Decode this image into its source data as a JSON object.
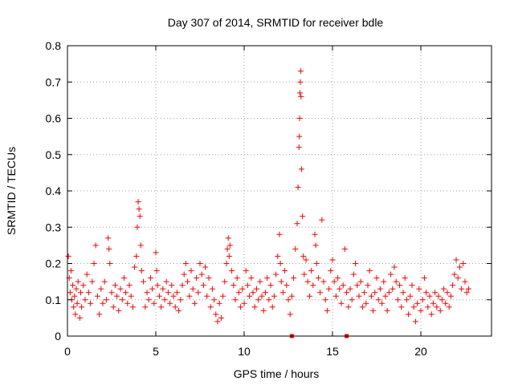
{
  "chart_data": {
    "type": "scatter",
    "title": "Day 307 of 2014, SRMTID for receiver bdle",
    "xlabel": "GPS time / hours",
    "ylabel": "SRMTID / TECUs",
    "xlim": [
      0,
      24
    ],
    "ylim": [
      0,
      0.8
    ],
    "xticks": [
      "0",
      "5",
      "10",
      "15",
      "20"
    ],
    "xtick_values": [
      0,
      5,
      10,
      15,
      20
    ],
    "yticks": [
      "0",
      "0.1",
      "0.2",
      "0.3",
      "0.4",
      "0.5",
      "0.6",
      "0.7",
      "0.8"
    ],
    "ytick_values": [
      0,
      0.1,
      0.2,
      0.3,
      0.4,
      0.5,
      0.6,
      0.7,
      0.8
    ],
    "grid": true,
    "marker": "plus",
    "color": "#ff0000",
    "series": [
      {
        "name": "SRMTID",
        "points": [
          [
            0.05,
            0.22
          ],
          [
            0.1,
            0.16
          ],
          [
            0.15,
            0.12
          ],
          [
            0.2,
            0.18
          ],
          [
            0.25,
            0.1
          ],
          [
            0.3,
            0.14
          ],
          [
            0.35,
            0.08
          ],
          [
            0.4,
            0.11
          ],
          [
            0.45,
            0.06
          ],
          [
            0.5,
            0.13
          ],
          [
            0.55,
            0.09
          ],
          [
            0.6,
            0.15
          ],
          [
            0.7,
            0.05
          ],
          [
            0.75,
            0.12
          ],
          [
            0.8,
            0.08
          ],
          [
            0.9,
            0.14
          ],
          [
            1.0,
            0.1
          ],
          [
            1.1,
            0.17
          ],
          [
            1.2,
            0.12
          ],
          [
            1.3,
            0.09
          ],
          [
            1.4,
            0.15
          ],
          [
            1.5,
            0.2
          ],
          [
            1.6,
            0.25
          ],
          [
            1.7,
            0.11
          ],
          [
            1.8,
            0.06
          ],
          [
            1.9,
            0.13
          ],
          [
            2.0,
            0.09
          ],
          [
            2.1,
            0.15
          ],
          [
            2.2,
            0.1
          ],
          [
            2.3,
            0.27
          ],
          [
            2.35,
            0.24
          ],
          [
            2.4,
            0.2
          ],
          [
            2.5,
            0.12
          ],
          [
            2.6,
            0.08
          ],
          [
            2.7,
            0.14
          ],
          [
            2.8,
            0.11
          ],
          [
            2.9,
            0.07
          ],
          [
            3.0,
            0.13
          ],
          [
            3.1,
            0.1
          ],
          [
            3.2,
            0.16
          ],
          [
            3.3,
            0.12
          ],
          [
            3.4,
            0.09
          ],
          [
            3.5,
            0.14
          ],
          [
            3.6,
            0.11
          ],
          [
            3.7,
            0.08
          ],
          [
            3.8,
            0.19
          ],
          [
            3.9,
            0.22
          ],
          [
            3.95,
            0.3
          ],
          [
            4.0,
            0.37
          ],
          [
            4.05,
            0.35
          ],
          [
            4.1,
            0.33
          ],
          [
            4.15,
            0.25
          ],
          [
            4.2,
            0.18
          ],
          [
            4.3,
            0.15
          ],
          [
            4.4,
            0.08
          ],
          [
            4.5,
            0.12
          ],
          [
            4.6,
            0.1
          ],
          [
            4.7,
            0.16
          ],
          [
            4.8,
            0.13
          ],
          [
            4.9,
            0.09
          ],
          [
            5.0,
            0.23
          ],
          [
            5.05,
            0.18
          ],
          [
            5.1,
            0.14
          ],
          [
            5.2,
            0.11
          ],
          [
            5.3,
            0.08
          ],
          [
            5.4,
            0.13
          ],
          [
            5.5,
            0.1
          ],
          [
            5.6,
            0.15
          ],
          [
            5.7,
            0.12
          ],
          [
            5.8,
            0.09
          ],
          [
            5.9,
            0.14
          ],
          [
            6.0,
            0.11
          ],
          [
            6.1,
            0.08
          ],
          [
            6.2,
            0.12
          ],
          [
            6.3,
            0.07
          ],
          [
            6.4,
            0.1
          ],
          [
            6.5,
            0.14
          ],
          [
            6.6,
            0.17
          ],
          [
            6.7,
            0.2
          ],
          [
            6.8,
            0.15
          ],
          [
            6.9,
            0.11
          ],
          [
            7.0,
            0.18
          ],
          [
            7.1,
            0.13
          ],
          [
            7.2,
            0.09
          ],
          [
            7.3,
            0.16
          ],
          [
            7.4,
            0.12
          ],
          [
            7.5,
            0.2
          ],
          [
            7.6,
            0.17
          ],
          [
            7.7,
            0.14
          ],
          [
            7.8,
            0.19
          ],
          [
            7.9,
            0.11
          ],
          [
            8.0,
            0.16
          ],
          [
            8.1,
            0.08
          ],
          [
            8.2,
            0.13
          ],
          [
            8.3,
            0.1
          ],
          [
            8.4,
            0.06
          ],
          [
            8.5,
            0.04
          ],
          [
            8.6,
            0.09
          ],
          [
            8.7,
            0.05
          ],
          [
            8.8,
            0.11
          ],
          [
            8.9,
            0.15
          ],
          [
            9.0,
            0.2
          ],
          [
            9.05,
            0.24
          ],
          [
            9.1,
            0.27
          ],
          [
            9.15,
            0.22
          ],
          [
            9.2,
            0.25
          ],
          [
            9.3,
            0.18
          ],
          [
            9.4,
            0.14
          ],
          [
            9.5,
            0.1
          ],
          [
            9.6,
            0.16
          ],
          [
            9.7,
            0.12
          ],
          [
            9.8,
            0.08
          ],
          [
            9.9,
            0.13
          ],
          [
            10.0,
            0.09
          ],
          [
            10.1,
            0.18
          ],
          [
            10.2,
            0.14
          ],
          [
            10.3,
            0.11
          ],
          [
            10.4,
            0.16
          ],
          [
            10.5,
            0.12
          ],
          [
            10.6,
            0.08
          ],
          [
            10.7,
            0.13
          ],
          [
            10.8,
            0.1
          ],
          [
            10.9,
            0.15
          ],
          [
            11.0,
            0.11
          ],
          [
            11.1,
            0.07
          ],
          [
            11.2,
            0.12
          ],
          [
            11.3,
            0.16
          ],
          [
            11.4,
            0.1
          ],
          [
            11.5,
            0.14
          ],
          [
            11.6,
            0.08
          ],
          [
            11.7,
            0.11
          ],
          [
            11.8,
            0.17
          ],
          [
            11.9,
            0.22
          ],
          [
            12.0,
            0.28
          ],
          [
            12.05,
            0.2
          ],
          [
            12.1,
            0.15
          ],
          [
            12.2,
            0.12
          ],
          [
            12.3,
            0.18
          ],
          [
            12.4,
            0.14
          ],
          [
            12.5,
            0.1
          ],
          [
            12.6,
            0.06
          ],
          [
            12.7,
            0.11
          ],
          [
            12.8,
            0.16
          ],
          [
            12.9,
            0.24
          ],
          [
            13.0,
            0.31
          ],
          [
            13.05,
            0.41
          ],
          [
            13.1,
            0.52
          ],
          [
            13.12,
            0.55
          ],
          [
            13.14,
            0.6
          ],
          [
            13.16,
            0.67
          ],
          [
            13.18,
            0.7
          ],
          [
            13.2,
            0.73
          ],
          [
            13.22,
            0.66
          ],
          [
            13.25,
            0.46
          ],
          [
            13.3,
            0.33
          ],
          [
            13.35,
            0.22
          ],
          [
            13.4,
            0.17
          ],
          [
            13.5,
            0.21
          ],
          [
            13.6,
            0.15
          ],
          [
            13.7,
            0.11
          ],
          [
            13.8,
            0.18
          ],
          [
            13.9,
            0.14
          ],
          [
            14.0,
            0.28
          ],
          [
            14.05,
            0.25
          ],
          [
            14.1,
            0.2
          ],
          [
            14.2,
            0.16
          ],
          [
            14.3,
            0.12
          ],
          [
            14.4,
            0.32
          ],
          [
            14.5,
            0.15
          ],
          [
            14.6,
            0.1
          ],
          [
            14.7,
            0.07
          ],
          [
            14.8,
            0.13
          ],
          [
            14.9,
            0.18
          ],
          [
            15.0,
            0.21
          ],
          [
            15.1,
            0.15
          ],
          [
            15.2,
            0.11
          ],
          [
            15.3,
            0.16
          ],
          [
            15.4,
            0.13
          ],
          [
            15.5,
            0.09
          ],
          [
            15.6,
            0.14
          ],
          [
            15.7,
            0.24
          ],
          [
            15.8,
            0.12
          ],
          [
            15.9,
            0.08
          ],
          [
            16.0,
            0.13
          ],
          [
            16.1,
            0.1
          ],
          [
            16.2,
            0.17
          ],
          [
            16.3,
            0.2
          ],
          [
            16.4,
            0.14
          ],
          [
            16.5,
            0.11
          ],
          [
            16.6,
            0.15
          ],
          [
            16.7,
            0.08
          ],
          [
            16.8,
            0.12
          ],
          [
            16.9,
            0.09
          ],
          [
            17.0,
            0.14
          ],
          [
            17.1,
            0.18
          ],
          [
            17.2,
            0.11
          ],
          [
            17.3,
            0.07
          ],
          [
            17.4,
            0.12
          ],
          [
            17.5,
            0.16
          ],
          [
            17.6,
            0.1
          ],
          [
            17.7,
            0.13
          ],
          [
            17.8,
            0.09
          ],
          [
            17.9,
            0.15
          ],
          [
            18.0,
            0.11
          ],
          [
            18.1,
            0.07
          ],
          [
            18.2,
            0.12
          ],
          [
            18.3,
            0.17
          ],
          [
            18.4,
            0.13
          ],
          [
            18.5,
            0.19
          ],
          [
            18.6,
            0.15
          ],
          [
            18.7,
            0.1
          ],
          [
            18.8,
            0.14
          ],
          [
            18.9,
            0.08
          ],
          [
            19.0,
            0.12
          ],
          [
            19.1,
            0.16
          ],
          [
            19.2,
            0.1
          ],
          [
            19.3,
            0.06
          ],
          [
            19.4,
            0.11
          ],
          [
            19.5,
            0.14
          ],
          [
            19.6,
            0.08
          ],
          [
            19.7,
            0.04
          ],
          [
            19.8,
            0.09
          ],
          [
            19.9,
            0.13
          ],
          [
            20.0,
            0.07
          ],
          [
            20.1,
            0.1
          ],
          [
            20.2,
            0.16
          ],
          [
            20.3,
            0.12
          ],
          [
            20.4,
            0.08
          ],
          [
            20.5,
            0.11
          ],
          [
            20.6,
            0.06
          ],
          [
            20.7,
            0.09
          ],
          [
            20.8,
            0.12
          ],
          [
            20.9,
            0.08
          ],
          [
            21.0,
            0.11
          ],
          [
            21.1,
            0.07
          ],
          [
            21.2,
            0.1
          ],
          [
            21.3,
            0.13
          ],
          [
            21.4,
            0.09
          ],
          [
            21.5,
            0.12
          ],
          [
            21.6,
            0.08
          ],
          [
            21.7,
            0.11
          ],
          [
            21.8,
            0.14
          ],
          [
            21.9,
            0.17
          ],
          [
            22.0,
            0.21
          ],
          [
            22.1,
            0.16
          ],
          [
            22.2,
            0.19
          ],
          [
            22.3,
            0.13
          ],
          [
            22.4,
            0.2
          ],
          [
            22.5,
            0.15
          ],
          [
            22.6,
            0.12
          ],
          [
            22.7,
            0.13
          ]
        ]
      }
    ],
    "zero_markers": [
      12.7,
      15.8
    ]
  }
}
